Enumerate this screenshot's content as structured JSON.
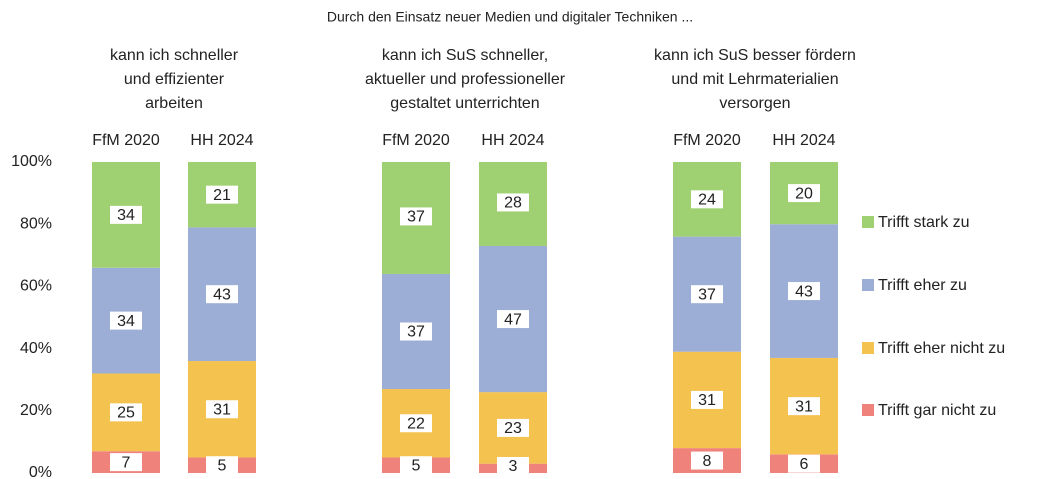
{
  "chart_data": {
    "type": "stacked_bar",
    "title": "Durch den Einsatz neuer Medien und digitaler Techniken ...",
    "groups": [
      {
        "label": [
          "kann ich schneller",
          "und effizienter",
          "arbeiten"
        ]
      },
      {
        "label": [
          "kann ich SuS schneller,",
          "aktueller und professioneller",
          "gestaltet unterrichten"
        ]
      },
      {
        "label": [
          "kann ich SuS besser fördern",
          "und mit Lehrmaterialien",
          "versorgen"
        ]
      }
    ],
    "categories": [
      "FfM 2020",
      "HH 2024",
      "FfM 2020",
      "HH 2024",
      "FfM 2020",
      "HH 2024"
    ],
    "series": [
      {
        "name": "Trifft gar nicht zu",
        "color": "#f0827c",
        "values": [
          7,
          5,
          5,
          3,
          8,
          6
        ]
      },
      {
        "name": "Trifft eher nicht zu",
        "color": "#f3c24f",
        "values": [
          25,
          31,
          22,
          23,
          31,
          31
        ]
      },
      {
        "name": "Trifft eher zu",
        "color": "#9caed6",
        "values": [
          34,
          43,
          37,
          47,
          37,
          43
        ]
      },
      {
        "name": "Trifft stark zu",
        "color": "#9fd071",
        "values": [
          34,
          21,
          37,
          28,
          24,
          20
        ]
      }
    ],
    "ylim": [
      0,
      100
    ],
    "yticks": [
      {
        "value": 0,
        "label": "0%"
      },
      {
        "value": 20,
        "label": "20%"
      },
      {
        "value": 40,
        "label": "40%"
      },
      {
        "value": 60,
        "label": "60%"
      },
      {
        "value": 80,
        "label": "80%"
      },
      {
        "value": 100,
        "label": "100%"
      }
    ],
    "legend": "right"
  }
}
